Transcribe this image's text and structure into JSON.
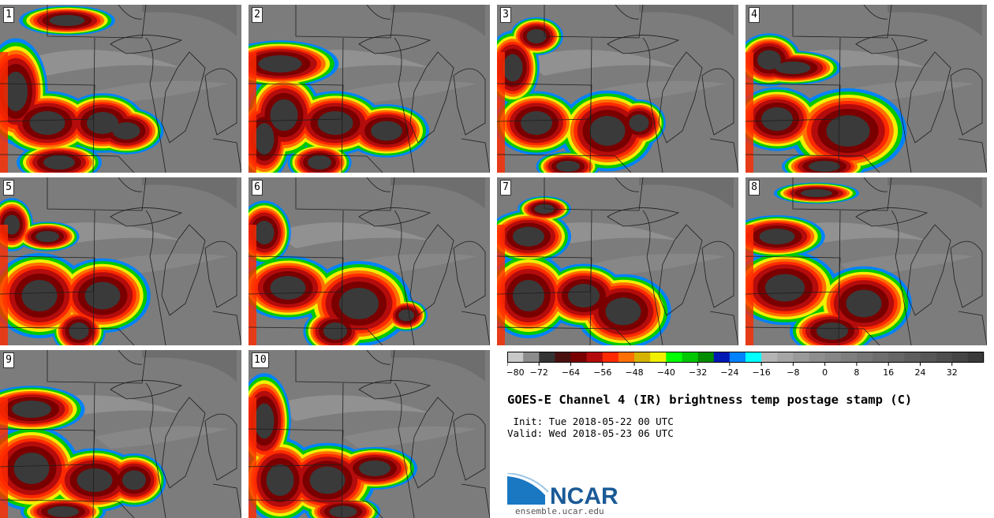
{
  "panels": [
    "1",
    "2",
    "3",
    "4",
    "5",
    "6",
    "7",
    "8",
    "9",
    "10"
  ],
  "colorbar": {
    "tick_labels": [
      "−80",
      "−72",
      "−64",
      "−56",
      "−48",
      "−40",
      "−32",
      "−24",
      "−16",
      "−8",
      "0",
      "8",
      "16",
      "24",
      "32"
    ],
    "range": [
      -80,
      40
    ],
    "colors": [
      "#c8c8c8",
      "#8c8c8c",
      "#343434",
      "#4a1010",
      "#7a0000",
      "#b40c0c",
      "#ff2a00",
      "#ff7000",
      "#d4b400",
      "#f0f000",
      "#00ff00",
      "#00c800",
      "#008c00",
      "#0018b4",
      "#0082ff",
      "#00ffff",
      "#b4b4b4",
      "#a6a6a6",
      "#9a9a9a",
      "#8e8e8e",
      "#868686",
      "#7e7e7e",
      "#767676",
      "#6e6e6e",
      "#666666",
      "#5e5e5e",
      "#565656",
      "#4e4e4e",
      "#444444",
      "#3a3a3a"
    ]
  },
  "title": "GOES-E Channel 4 (IR) brightness temp postage stamp (C)",
  "init_line": " Init: Tue 2018-05-22 00 UTC",
  "valid_line": "Valid: Wed 2018-05-23 06 UTC",
  "logo_text": "NCAR",
  "site": "ensemble.ucar.edu"
}
